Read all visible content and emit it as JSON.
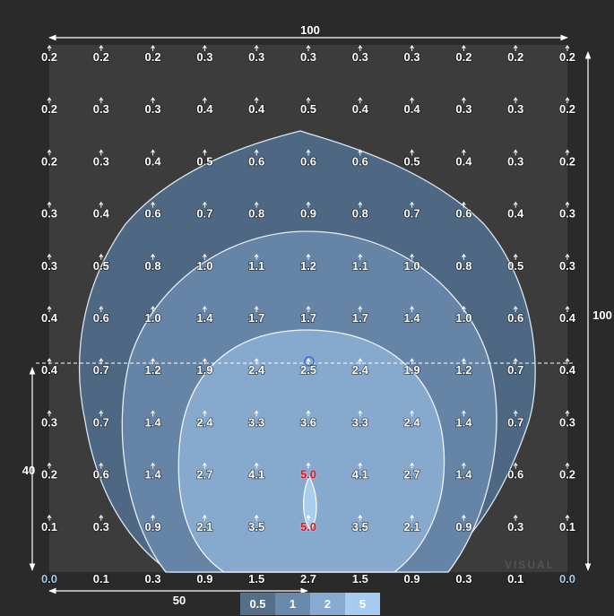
{
  "diagram": {
    "dimensions": {
      "width_label": "100",
      "height_label": "100",
      "mount_height_label": "40",
      "half_width_label": "50"
    },
    "watermark": "VISUAL",
    "grid_values": [
      [
        "0.2",
        "0.2",
        "0.2",
        "0.3",
        "0.3",
        "0.3",
        "0.3",
        "0.3",
        "0.2",
        "0.2",
        "0.2"
      ],
      [
        "0.2",
        "0.3",
        "0.3",
        "0.4",
        "0.4",
        "0.5",
        "0.4",
        "0.4",
        "0.3",
        "0.3",
        "0.2"
      ],
      [
        "0.2",
        "0.3",
        "0.4",
        "0.5",
        "0.6",
        "0.6",
        "0.6",
        "0.5",
        "0.4",
        "0.3",
        "0.2"
      ],
      [
        "0.3",
        "0.4",
        "0.6",
        "0.7",
        "0.8",
        "0.9",
        "0.8",
        "0.7",
        "0.6",
        "0.4",
        "0.3"
      ],
      [
        "0.3",
        "0.5",
        "0.8",
        "1.0",
        "1.1",
        "1.2",
        "1.1",
        "1.0",
        "0.8",
        "0.5",
        "0.3"
      ],
      [
        "0.4",
        "0.6",
        "1.0",
        "1.4",
        "1.7",
        "1.7",
        "1.7",
        "1.4",
        "1.0",
        "0.6",
        "0.4"
      ],
      [
        "0.4",
        "0.7",
        "1.2",
        "1.9",
        "2.4",
        "2.5",
        "2.4",
        "1.9",
        "1.2",
        "0.7",
        "0.4"
      ],
      [
        "0.3",
        "0.7",
        "1.4",
        "2.4",
        "3.3",
        "3.6",
        "3.3",
        "2.4",
        "1.4",
        "0.7",
        "0.3"
      ],
      [
        "0.2",
        "0.6",
        "1.4",
        "2.7",
        "4.1",
        "5.0",
        "4.1",
        "2.7",
        "1.4",
        "0.6",
        "0.2"
      ],
      [
        "0.1",
        "0.3",
        "0.9",
        "2.1",
        "3.5",
        "5.0",
        "3.5",
        "2.1",
        "0.9",
        "0.3",
        "0.1"
      ],
      [
        "0.0",
        "0.1",
        "0.3",
        "0.9",
        "1.5",
        "2.7",
        "1.5",
        "0.9",
        "0.3",
        "0.1",
        "0.0"
      ]
    ],
    "contour_levels": [
      {
        "label": "0.5",
        "color": "#556f8b"
      },
      {
        "label": "1",
        "color": "#6a8aac"
      },
      {
        "label": "2",
        "color": "#87abd0"
      },
      {
        "label": "5",
        "color": "#a6ccf0"
      }
    ],
    "background_color": "#2a2a2a",
    "plot_background_color": "#3c3c3c",
    "peak_color": "#e8141b"
  }
}
